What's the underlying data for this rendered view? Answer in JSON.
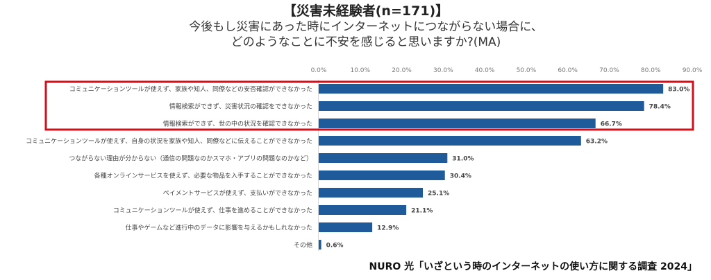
{
  "chart_data": {
    "type": "bar",
    "orientation": "horizontal",
    "title": "【災害未経験者(n=171)】",
    "subtitle_lines": [
      "今後もし災害にあった時にインターネットにつながらない場合に、",
      "どのようなことに不安を感じると思いますか?(MA)"
    ],
    "xlabel": "",
    "ylabel": "",
    "xlim": [
      0,
      90
    ],
    "x_ticks": [
      0,
      10,
      20,
      30,
      40,
      50,
      60,
      70,
      80,
      90
    ],
    "x_tick_labels": [
      "0.0%",
      "10.0%",
      "20.0%",
      "30.0%",
      "40.0%",
      "50.0%",
      "60.0%",
      "70.0%",
      "80.0%",
      "90.0%"
    ],
    "axis_position": "top",
    "grid": false,
    "categories": [
      "コミュニケーションツールが使えず、家族や知人、同僚などの安否確認ができなかった",
      "情報検索ができず、災害状況の確認をできなかった",
      "情報検索ができず、世の中の状況を確認できなかった",
      "コミュニケーションツールが使えず、自身の状況を家族や知人、同僚などに伝えることができなかった",
      "つながらない理由が分からない（通信の問題なのかスマホ・アプリの問題なのかなど）",
      "各種オンラインサービスを使えず、必要な物品を入手することができなかった",
      "ペイメントサービスが使えず、支払いができなかった",
      "コミュニケーションツールが使えず、仕事を進めることができなかった",
      "仕事やゲームなど進行中のデータに影響を与えるかもしれなかった",
      "その他"
    ],
    "values": [
      83.0,
      78.4,
      66.7,
      63.2,
      31.0,
      30.4,
      25.1,
      21.1,
      12.9,
      0.6
    ],
    "value_labels": [
      "83.0%",
      "78.4%",
      "66.7%",
      "63.2%",
      "31.0%",
      "30.4%",
      "25.1%",
      "21.1%",
      "12.9%",
      "0.6%"
    ],
    "bar_color": "#1f5a9a",
    "highlight": {
      "indices": [
        0,
        1,
        2
      ],
      "color": "#d0111b",
      "style": "outline-box"
    },
    "source": "NURO 光「いざという時のインターネットの使い方に関する調査 2024」"
  }
}
